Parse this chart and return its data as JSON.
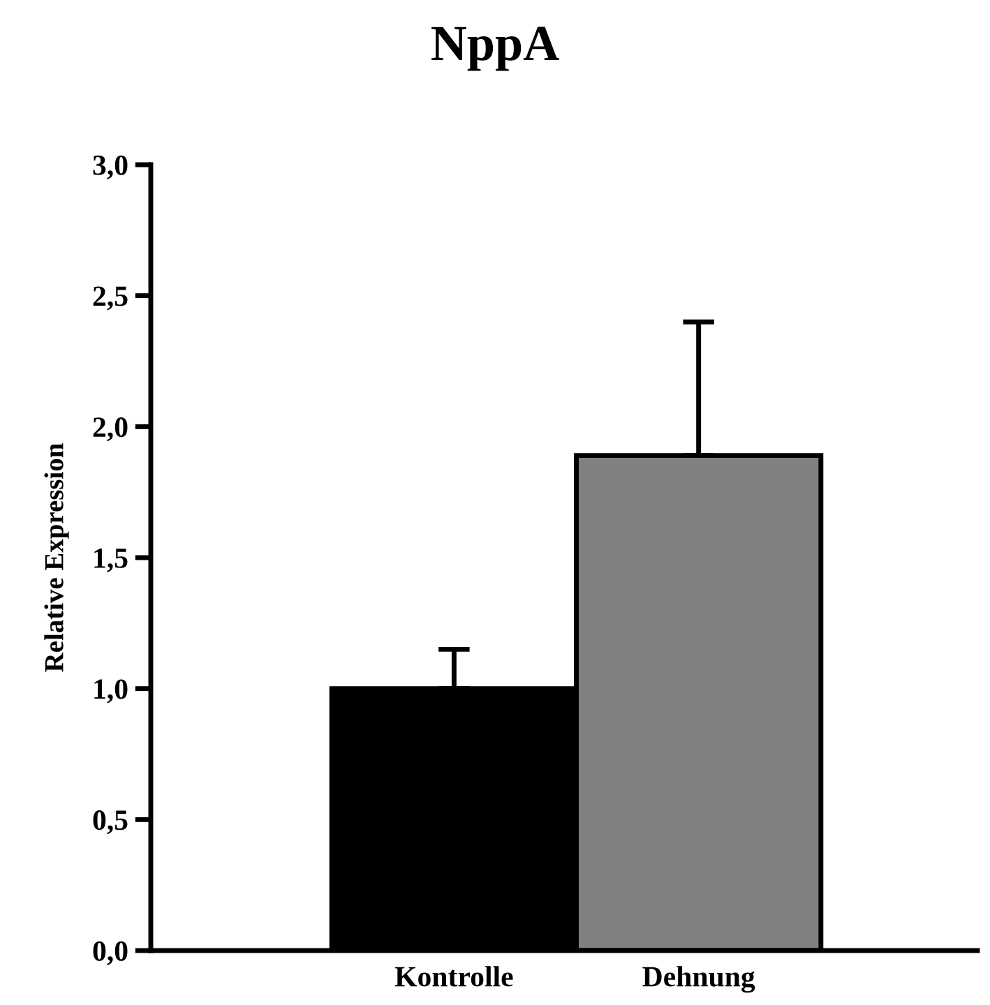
{
  "chart_data": {
    "type": "bar",
    "title": "NppA",
    "ylabel": "Relative Expression",
    "categories": [
      "Kontrolle",
      "Dehnung"
    ],
    "values": [
      1.0,
      1.89
    ],
    "colors": [
      "#000000",
      "#808080"
    ],
    "errors": [
      [
        1.0,
        1.15
      ],
      [
        1.89,
        2.4
      ]
    ],
    "ylim": [
      0,
      3
    ],
    "yticks": [
      {
        "value": 0,
        "label": "0,0"
      },
      {
        "value": 0.5,
        "label": "0,5"
      },
      {
        "value": 1,
        "label": "1,0"
      },
      {
        "value": 1.5,
        "label": "1,5"
      },
      {
        "value": 2,
        "label": "2,0"
      },
      {
        "value": 2.5,
        "label": "2,5"
      },
      {
        "value": 3,
        "label": "3,0"
      }
    ],
    "grid": false,
    "legend": false
  }
}
